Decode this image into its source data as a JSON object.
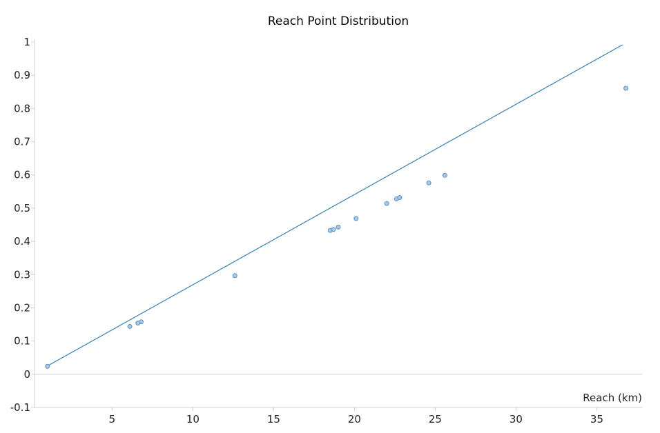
{
  "chart_data": {
    "type": "scatter",
    "title": "Reach Point Distribution",
    "xlabel": "Reach (km)",
    "ylabel": "",
    "xlim": [
      0.2,
      37.8
    ],
    "ylim": [
      -0.1,
      1.0
    ],
    "x_ticks": [
      5,
      10,
      15,
      20,
      25,
      30,
      35
    ],
    "y_ticks": [
      -0.1,
      0,
      0.1,
      0.2,
      0.3,
      0.4,
      0.5,
      0.6,
      0.7,
      0.8,
      0.9,
      1
    ],
    "grid": false,
    "legend": "none",
    "colors": {
      "line": "#3a7fb0",
      "point_fill": "#a9c9e8",
      "point_stroke": "#5b8fc0"
    },
    "series": [
      {
        "type": "scatter",
        "points": [
          {
            "x": 1.0,
            "y": 0.024
          },
          {
            "x": 6.1,
            "y": 0.144
          },
          {
            "x": 6.6,
            "y": 0.154
          },
          {
            "x": 6.8,
            "y": 0.158
          },
          {
            "x": 12.6,
            "y": 0.297
          },
          {
            "x": 18.5,
            "y": 0.433
          },
          {
            "x": 18.7,
            "y": 0.436
          },
          {
            "x": 19.0,
            "y": 0.443
          },
          {
            "x": 20.1,
            "y": 0.469
          },
          {
            "x": 22.0,
            "y": 0.514
          },
          {
            "x": 22.6,
            "y": 0.528
          },
          {
            "x": 22.8,
            "y": 0.532
          },
          {
            "x": 24.6,
            "y": 0.576
          },
          {
            "x": 25.6,
            "y": 0.599
          },
          {
            "x": 36.8,
            "y": 0.861
          }
        ]
      },
      {
        "type": "line",
        "points": [
          {
            "x": 1.0,
            "y": 0.025
          },
          {
            "x": 36.6,
            "y": 0.992
          }
        ]
      }
    ]
  }
}
